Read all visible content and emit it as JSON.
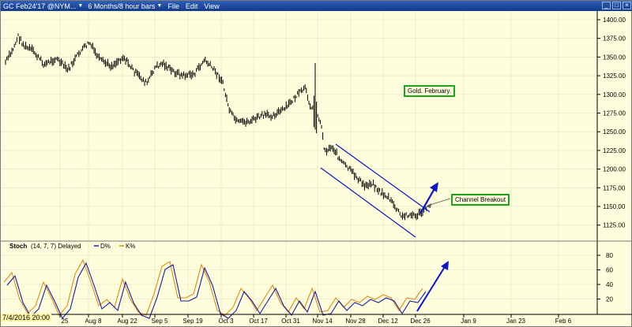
{
  "titlebar": {
    "symbol": "GC Feb24'17 @NYM...",
    "interval": "6 Months/8 hour bars",
    "menus": [
      "File",
      "Edit",
      "View"
    ]
  },
  "annotations": {
    "chart_title": "Gold. February.",
    "breakout": "Channel Breakout"
  },
  "stoch": {
    "label": "Stoch",
    "params": "(14, 7, 7) Delayed",
    "d_label": "D%",
    "k_label": "K%",
    "d_color": "#1a1aa0",
    "k_color": "#e08a1a"
  },
  "x_axis": {
    "first": "7/4/2016 20:00",
    "labels": [
      "25",
      "Aug 8",
      "Aug 22",
      "Sep 5",
      "Sep 19",
      "Oct 3",
      "Oct 17",
      "Oct 31",
      "Nov 14",
      "Nov 28",
      "Dec 12",
      "Dec 26",
      "Jan 9",
      "Jan 23",
      "Feb 6"
    ]
  },
  "price_axis": {
    "labels": [
      "1400.00",
      "1375.00",
      "1350.00",
      "1325.00",
      "1300.00",
      "1275.00",
      "1250.00",
      "1225.00",
      "1200.00",
      "1175.00",
      "1150.00",
      "1125.00"
    ]
  },
  "stoch_axis": {
    "labels": [
      "80",
      "60",
      "40",
      "20"
    ]
  },
  "colors": {
    "background": "#fefedc",
    "price_bars": "#000000",
    "channel": "#0a14c8",
    "annotation_border": "#1aa51a",
    "titlebar": "#1e4a9e"
  },
  "icons": [
    "chevron-down-icon",
    "minimize-icon",
    "maximize-icon",
    "close-icon"
  ]
}
